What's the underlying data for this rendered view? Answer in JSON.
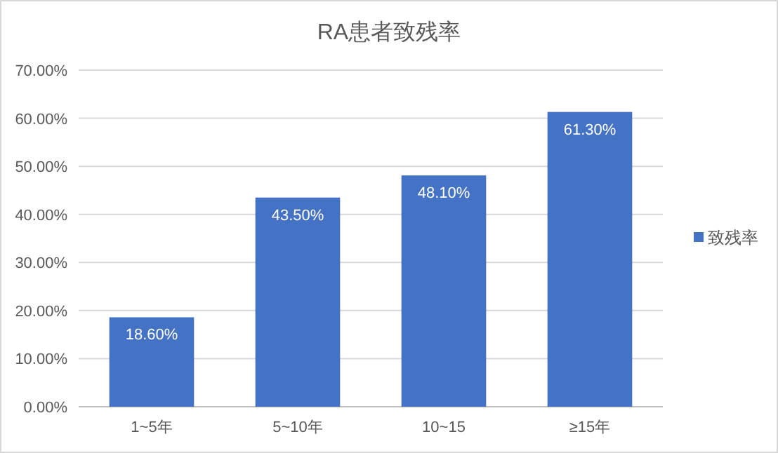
{
  "chart_data": {
    "type": "bar",
    "title": "RA患者致残率",
    "categories": [
      "1~5年",
      "5~10年",
      "10~15",
      "≥15年"
    ],
    "series": [
      {
        "name": "致残率",
        "color": "#4472c4",
        "values": [
          18.6,
          43.5,
          48.1,
          61.3
        ],
        "value_labels": [
          "18.60%",
          "43.50%",
          "48.10%",
          "61.30%"
        ]
      }
    ],
    "ylim": [
      0,
      70
    ],
    "yticks": [
      {
        "value": 0,
        "label": "0.00%"
      },
      {
        "value": 10,
        "label": "10.00%"
      },
      {
        "value": 20,
        "label": "20.00%"
      },
      {
        "value": 30,
        "label": "30.00%"
      },
      {
        "value": 40,
        "label": "40.00%"
      },
      {
        "value": 50,
        "label": "50.00%"
      },
      {
        "value": 60,
        "label": "60.00%"
      },
      {
        "value": 70,
        "label": "70.00%"
      }
    ],
    "grid": "y",
    "legend": "right"
  }
}
